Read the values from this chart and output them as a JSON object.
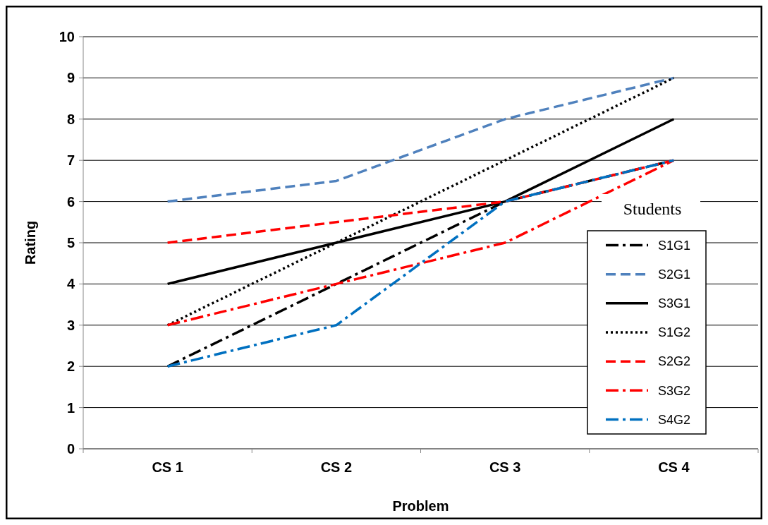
{
  "chart_data": {
    "type": "line",
    "xlabel": "Problem",
    "ylabel": "Rating",
    "legend_title": "Students",
    "categories": [
      "CS 1",
      "CS 2",
      "CS 3",
      "CS 4"
    ],
    "ylim": [
      0,
      10
    ],
    "yticks": [
      0,
      1,
      2,
      3,
      4,
      5,
      6,
      7,
      8,
      9,
      10
    ],
    "grid": "y",
    "legend": "right",
    "series": [
      {
        "name": "S1G1",
        "color": "#000000",
        "line_style": "dashdot",
        "values": [
          2,
          4,
          6,
          7
        ]
      },
      {
        "name": "S2G1",
        "color": "#4f81bd",
        "line_style": "dashed",
        "values": [
          6,
          6.5,
          8,
          9
        ]
      },
      {
        "name": "S3G1",
        "color": "#000000",
        "line_style": "solid",
        "values": [
          4,
          5,
          6,
          8
        ]
      },
      {
        "name": "S1G2",
        "color": "#000000",
        "line_style": "dotted",
        "values": [
          3,
          5,
          7,
          9
        ]
      },
      {
        "name": "S2G2",
        "color": "#ff0000",
        "line_style": "dashed",
        "values": [
          5,
          5.5,
          6,
          7
        ]
      },
      {
        "name": "S3G2",
        "color": "#ff0000",
        "line_style": "dashdot",
        "values": [
          3,
          4,
          5,
          7
        ]
      },
      {
        "name": "S4G2",
        "color": "#0070c0",
        "line_style": "dashdot",
        "values": [
          2,
          3,
          6,
          7
        ]
      }
    ]
  }
}
